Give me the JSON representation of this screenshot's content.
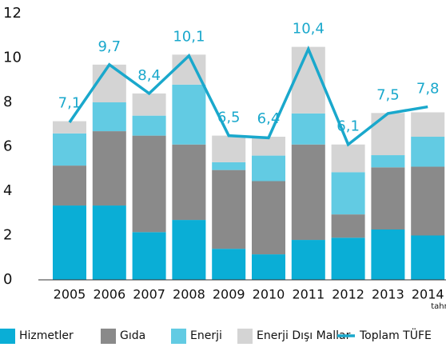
{
  "chart_data": {
    "type": "bar",
    "stacked": true,
    "categories": [
      "2005",
      "2006",
      "2007",
      "2008",
      "2009",
      "2010",
      "2011",
      "2012",
      "2013",
      "2014"
    ],
    "annotations": [
      "tahmini"
    ],
    "series": [
      {
        "name": "Hizmetler",
        "color": "#0aaed6",
        "values": [
          3.35,
          3.35,
          2.15,
          2.7,
          1.4,
          1.15,
          1.8,
          1.9,
          2.27,
          2.0
        ]
      },
      {
        "name": "Gıda",
        "color": "#8a8a8a",
        "values": [
          1.8,
          3.35,
          4.35,
          3.4,
          3.55,
          3.3,
          4.3,
          1.05,
          2.8,
          3.1
        ]
      },
      {
        "name": "Enerji",
        "color": "#62cbe3",
        "values": [
          1.45,
          1.3,
          0.9,
          2.7,
          0.35,
          1.15,
          1.4,
          1.9,
          0.55,
          1.35
        ]
      },
      {
        "name": "Enerji Dışı Mallar",
        "color": "#d4d4d4",
        "values": [
          0.55,
          1.7,
          1.0,
          1.35,
          1.2,
          0.85,
          3.0,
          1.25,
          1.9,
          1.1
        ]
      },
      {
        "name": "Toplam TÜFE",
        "type": "line",
        "color": "#1aa8cc",
        "values": [
          7.1,
          9.7,
          8.4,
          10.1,
          6.5,
          6.4,
          10.4,
          6.1,
          7.5,
          7.8
        ],
        "value_labels": [
          "7,1",
          "9,7",
          "8,4",
          "10,1",
          "6,5",
          "6,4",
          "10,4",
          "6,1",
          "7,5",
          "7,8"
        ]
      }
    ],
    "ylim": [
      0,
      12
    ],
    "yticks": [
      0,
      2,
      4,
      6,
      8,
      10,
      12
    ],
    "grid": false
  }
}
